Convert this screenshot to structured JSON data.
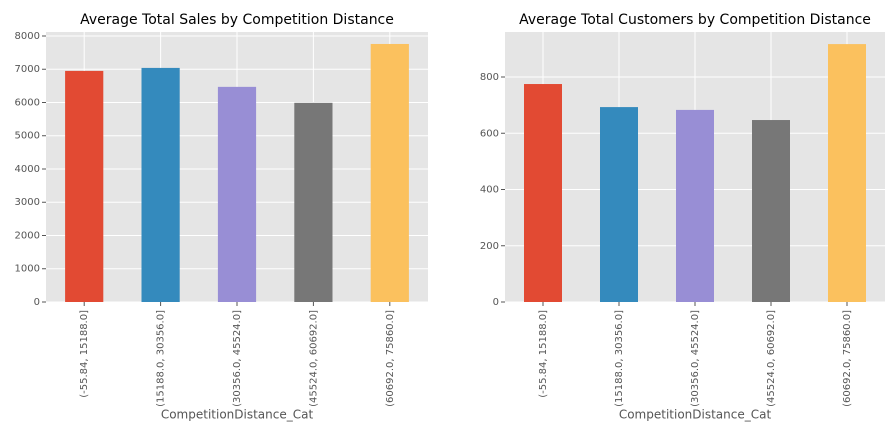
{
  "chart_data": [
    {
      "type": "bar",
      "title": "Average Total Sales by Competition Distance",
      "categories": [
        "(-55.84, 15188.0]",
        "(15188.0, 30356.0]",
        "(30356.0, 45524.0]",
        "(45524.0, 60692.0]",
        "(60692.0, 75860.0]"
      ],
      "values": [
        6950,
        7040,
        6470,
        5990,
        7760
      ],
      "colors": [
        "#E24A33",
        "#348ABD",
        "#988ED5",
        "#777777",
        "#FBC15E"
      ],
      "xlabel": "CompetitionDistance_Cat",
      "ylim": [
        0,
        8120
      ],
      "yticks": [
        0,
        1000,
        2000,
        3000,
        4000,
        5000,
        6000,
        7000,
        8000
      ],
      "grid": true
    },
    {
      "type": "bar",
      "title": "Average Total Customers by Competition Distance",
      "categories": [
        "(-55.84, 15188.0]",
        "(15188.0, 30356.0]",
        "(30356.0, 45524.0]",
        "(45524.0, 60692.0]",
        "(60692.0, 75860.0]"
      ],
      "values": [
        775,
        693,
        683,
        647,
        917
      ],
      "colors": [
        "#E24A33",
        "#348ABD",
        "#988ED5",
        "#777777",
        "#FBC15E"
      ],
      "xlabel": "CompetitionDistance_Cat",
      "ylim": [
        0,
        960
      ],
      "yticks": [
        0,
        200,
        400,
        600,
        800
      ],
      "grid": true
    }
  ]
}
